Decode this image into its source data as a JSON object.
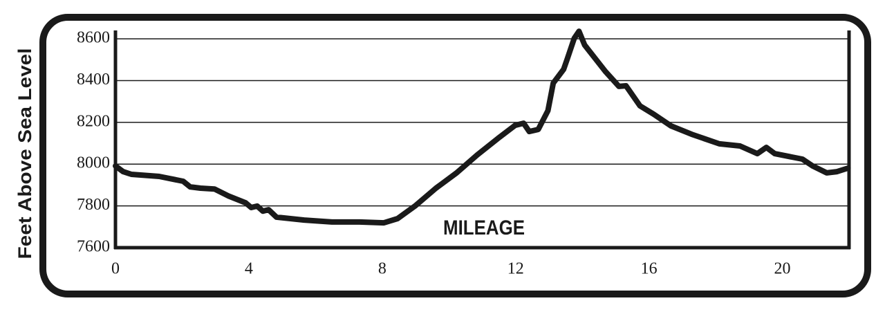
{
  "chart_data": {
    "type": "line",
    "ylabel": "Feet Above Sea Level",
    "xlabel": "MILEAGE",
    "x": [
      0,
      0.23,
      0.48,
      1.31,
      2.03,
      2.24,
      2.55,
      2.97,
      3.38,
      3.9,
      4.07,
      4.25,
      4.42,
      4.59,
      4.83,
      5.66,
      6.49,
      7.32,
      8.05,
      8.46,
      8.98,
      9.61,
      10.23,
      10.85,
      11.47,
      11.99,
      12.24,
      12.41,
      12.68,
      12.97,
      13.13,
      13.44,
      13.55,
      13.76,
      13.9,
      14.07,
      14.48,
      14.69,
      15.1,
      15.31,
      15.73,
      16.14,
      16.66,
      17.28,
      18.11,
      18.73,
      19.25,
      19.52,
      19.77,
      20.6,
      20.91,
      21.33,
      21.64,
      21.97
    ],
    "values": [
      7991,
      7964,
      7951,
      7941,
      7918,
      7891,
      7885,
      7881,
      7848,
      7815,
      7792,
      7799,
      7775,
      7782,
      7746,
      7732,
      7723,
      7723,
      7719,
      7739,
      7799,
      7885,
      7958,
      8044,
      8123,
      8186,
      8196,
      8156,
      8166,
      8256,
      8388,
      8454,
      8504,
      8603,
      8636,
      8570,
      8487,
      8444,
      8372,
      8375,
      8279,
      8239,
      8183,
      8143,
      8097,
      8087,
      8050,
      8080,
      8050,
      8024,
      7991,
      7958,
      7964,
      7981
    ],
    "color": "#1a1a1a",
    "xlim": [
      0,
      22
    ],
    "xticks": [
      0,
      4,
      8,
      12,
      16,
      20
    ],
    "ylim": [
      7600,
      8640
    ],
    "yticks": [
      7600,
      7800,
      8000,
      8200,
      8400,
      8600
    ],
    "grid": true
  }
}
